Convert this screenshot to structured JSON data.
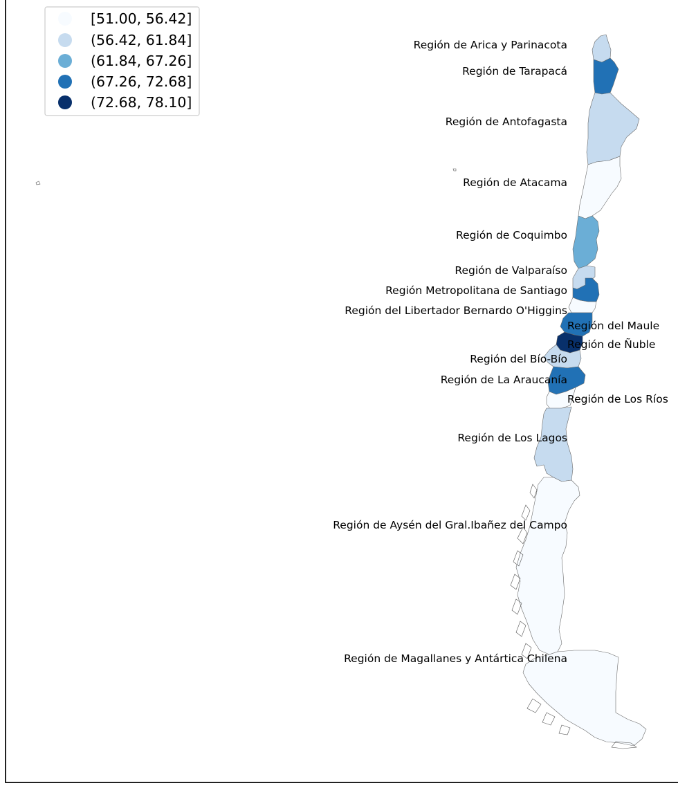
{
  "legend": {
    "items": [
      {
        "label": "[51.00, 56.42]",
        "color": "#f7fbff"
      },
      {
        "label": "(56.42, 61.84]",
        "color": "#c6dbef"
      },
      {
        "label": "(61.84, 67.26]",
        "color": "#6baed6"
      },
      {
        "label": "(67.26, 72.68]",
        "color": "#2171b5"
      },
      {
        "label": "(72.68, 78.10]",
        "color": "#08306b"
      }
    ]
  },
  "regions": [
    {
      "name": "Región de Arica y Parinacota",
      "class": 1
    },
    {
      "name": "Región de Tarapacá",
      "class": 3
    },
    {
      "name": "Región de Antofagasta",
      "class": 1
    },
    {
      "name": "Región de Atacama",
      "class": 0
    },
    {
      "name": "Región de Coquimbo",
      "class": 2
    },
    {
      "name": "Región de Valparaíso",
      "class": 1
    },
    {
      "name": "Región Metropolitana de Santiago",
      "class": 3
    },
    {
      "name": "Región del Libertador Bernardo O'Higgins",
      "class": 0
    },
    {
      "name": "Región del Maule",
      "class": 3
    },
    {
      "name": "Región de Ñuble",
      "class": 4
    },
    {
      "name": "Región del Bío-Bío",
      "class": 1
    },
    {
      "name": "Región de La Araucanía",
      "class": 3
    },
    {
      "name": "Región de Los Ríos",
      "class": 0
    },
    {
      "name": "Región de Los Lagos",
      "class": 1
    },
    {
      "name": "Región de Aysén del Gral.Ibañez del Campo",
      "class": 0
    },
    {
      "name": "Región de Magallanes y Antártica Chilena",
      "class": 0
    }
  ]
}
